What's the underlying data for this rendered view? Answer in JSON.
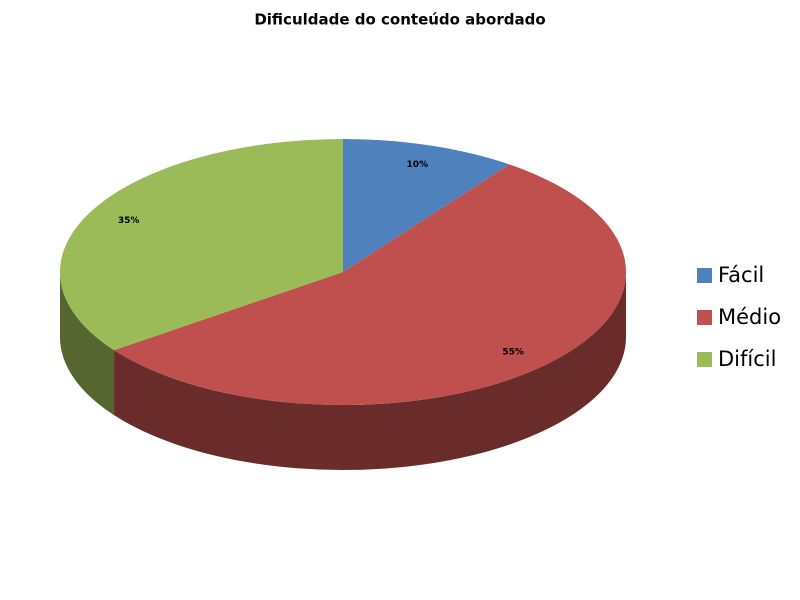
{
  "chart_data": {
    "type": "pie",
    "title": "Dificuldade do conteúdo abordado",
    "categories": [
      "Fácil",
      "Médio",
      "Difícil"
    ],
    "values": [
      10,
      55,
      35
    ],
    "value_labels": [
      "10%",
      "55%",
      "35%"
    ],
    "colors": [
      "#4f81bd",
      "#c0504d",
      "#9bbb59"
    ],
    "legend": "right"
  }
}
